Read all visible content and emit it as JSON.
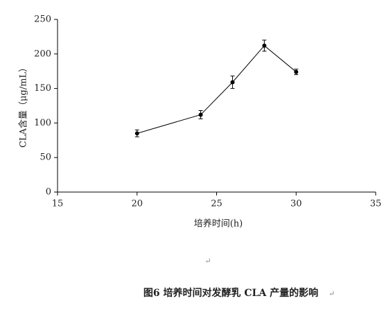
{
  "chart_data": {
    "type": "line",
    "x_label": "培养时间(h)",
    "y_label": "CLA含量（μg/mL）",
    "x": [
      20,
      24,
      26,
      28,
      30
    ],
    "series": [
      {
        "color": "#000000",
        "values": [
          85,
          112,
          159,
          212,
          174
        ],
        "errors": [
          5,
          6,
          9,
          8,
          4
        ]
      }
    ],
    "xlim": [
      15,
      35
    ],
    "xticks": [
      15,
      20,
      25,
      30,
      35
    ],
    "ylim": [
      0,
      250
    ],
    "yticks": [
      0,
      50,
      100,
      150,
      200,
      250
    ],
    "caption": "图6  培养时间对发酵乳 CLA 产量的影响",
    "paragraph_mark": "↵"
  }
}
